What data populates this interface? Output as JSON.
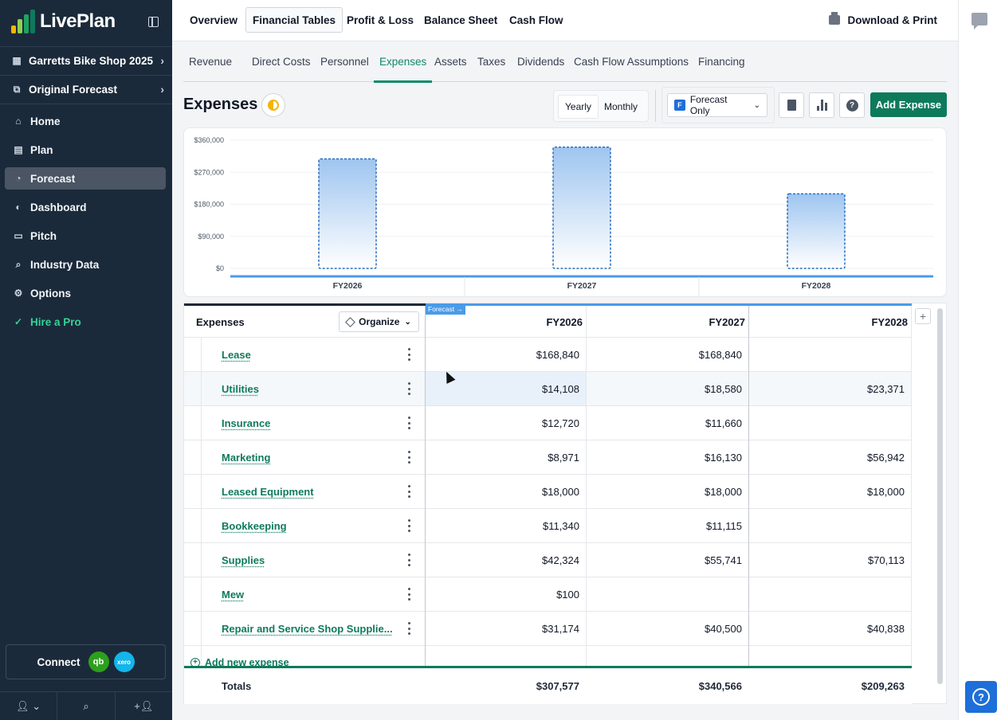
{
  "brand": {
    "name": "LivePlan",
    "logo_colors": [
      "#f5b400",
      "#8fd14f",
      "#1ea362",
      "#0e7a5c"
    ]
  },
  "sidebar": {
    "company": "Garretts Bike Shop 2025",
    "forecast": "Original Forecast",
    "items": [
      {
        "label": "Home",
        "icon": "home-icon",
        "glyph": "⌂"
      },
      {
        "label": "Plan",
        "icon": "plan-icon",
        "glyph": "▤"
      },
      {
        "label": "Forecast",
        "icon": "forecast-icon",
        "glyph": "◔"
      },
      {
        "label": "Dashboard",
        "icon": "dashboard-icon",
        "glyph": "◐"
      },
      {
        "label": "Pitch",
        "icon": "pitch-icon",
        "glyph": "▭"
      },
      {
        "label": "Industry Data",
        "icon": "industry-data-icon",
        "glyph": "⌕"
      },
      {
        "label": "Options",
        "icon": "options-icon",
        "glyph": "⚙"
      },
      {
        "label": "Hire a Pro",
        "icon": "hire-pro-icon",
        "glyph": "✓"
      }
    ],
    "connect_label": "Connect",
    "qb_label": "qb",
    "xero_label": "xero"
  },
  "topbar": {
    "tabs": [
      "Overview",
      "Financial Tables",
      "Profit & Loss",
      "Balance Sheet",
      "Cash Flow"
    ],
    "active_tab": "Financial Tables",
    "download_label": "Download & Print"
  },
  "subtabs": {
    "items": [
      "Revenue",
      "Direct Costs",
      "Personnel",
      "Expenses",
      "Assets",
      "Taxes",
      "Dividends",
      "Cash Flow Assumptions",
      "Financing"
    ],
    "active": "Expenses"
  },
  "page": {
    "title": "Expenses",
    "yearly_label": "Yearly",
    "monthly_label": "Monthly",
    "view_badge": "F",
    "view_label": "Forecast Only",
    "add_label": "Add Expense"
  },
  "chart_data": {
    "type": "bar",
    "title": "",
    "categories": [
      "FY2026",
      "FY2027",
      "FY2028"
    ],
    "values": [
      307577,
      340566,
      209263
    ],
    "ylim": [
      0,
      360000
    ],
    "yticks": [
      "$0",
      "$90,000",
      "$180,000",
      "$270,000",
      "$360,000"
    ],
    "ytick_values": [
      0,
      90000,
      180000,
      270000,
      360000
    ],
    "xlabel": "",
    "ylabel": "",
    "bar_color": "#9ec5f0",
    "axis_color": "#4a9be8"
  },
  "table": {
    "header_label": "Expenses",
    "organize_label": "Organize",
    "forecast_tag": "Forecast →",
    "columns": [
      "FY2026",
      "FY2027",
      "FY2028"
    ],
    "rows": [
      {
        "label": "Lease",
        "values": [
          "$168,840",
          "$168,840",
          ""
        ]
      },
      {
        "label": "Utilities",
        "values": [
          "$14,108",
          "$18,580",
          "$23,371"
        ]
      },
      {
        "label": "Insurance",
        "values": [
          "$12,720",
          "$11,660",
          ""
        ]
      },
      {
        "label": "Marketing",
        "values": [
          "$8,971",
          "$16,130",
          "$56,942"
        ]
      },
      {
        "label": "Leased Equipment",
        "values": [
          "$18,000",
          "$18,000",
          "$18,000"
        ]
      },
      {
        "label": "Bookkeeping",
        "values": [
          "$11,340",
          "$11,115",
          ""
        ]
      },
      {
        "label": "Supplies",
        "values": [
          "$42,324",
          "$55,741",
          "$70,113"
        ]
      },
      {
        "label": "Mew",
        "values": [
          "$100",
          "",
          ""
        ]
      },
      {
        "label": "Repair and Service Shop Supplie...",
        "values": [
          "$31,174",
          "$40,500",
          "$40,838"
        ]
      }
    ],
    "add_new_label": "Add new expense",
    "totals_label": "Totals",
    "totals": [
      "$307,577",
      "$340,566",
      "$209,263"
    ]
  }
}
